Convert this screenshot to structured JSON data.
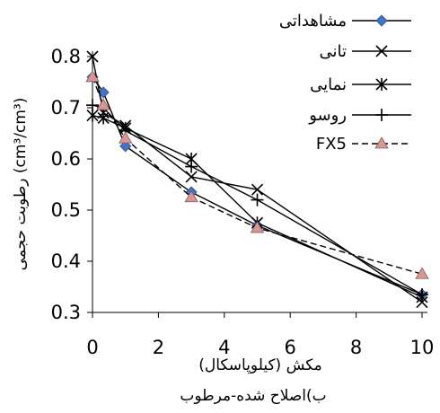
{
  "chart_data": {
    "type": "line",
    "xlabel": "مکش (کیلوپاسکال)",
    "ylabel": "رطوبت حجمی (cm³/cm³)",
    "caption": "ب)اصلاح شده-مرطوب",
    "xlim": [
      0,
      10
    ],
    "ylim": [
      0.3,
      0.8
    ],
    "x_ticks": [
      "0",
      "2",
      "4",
      "6",
      "8",
      "10"
    ],
    "y_ticks": [
      "0.3",
      "0.4",
      "0.5",
      "0.6",
      "0.7",
      "0.8"
    ],
    "legend_position": "top-right",
    "series": [
      {
        "name": "مشاهداتی",
        "marker": "diamond",
        "color": "#4472C4",
        "dash": false,
        "x": [
          0,
          0.33,
          1,
          3,
          5,
          10
        ],
        "y": [
          0.76,
          0.73,
          0.625,
          0.535,
          0.47,
          0.335
        ]
      },
      {
        "name": "تانی",
        "marker": "x",
        "color": "#000000",
        "dash": false,
        "x": [
          0,
          0.33,
          1,
          3,
          5,
          10
        ],
        "y": [
          0.8,
          0.69,
          0.665,
          0.565,
          0.54,
          0.32
        ]
      },
      {
        "name": "نمایی",
        "marker": "star",
        "color": "#000000",
        "dash": false,
        "x": [
          0,
          0.33,
          1,
          3,
          5,
          10
        ],
        "y": [
          0.685,
          0.68,
          0.66,
          0.6,
          0.475,
          0.33
        ]
      },
      {
        "name": "روسو",
        "marker": "plus",
        "color": "#000000",
        "dash": false,
        "x": [
          0,
          0.33,
          1,
          3,
          5,
          10
        ],
        "y": [
          0.705,
          0.7,
          0.655,
          0.585,
          0.52,
          0.335
        ]
      },
      {
        "name": "FX5",
        "marker": "triangle",
        "color": "#D99594",
        "dash": true,
        "x": [
          0,
          0.33,
          1,
          3,
          5,
          10
        ],
        "y": [
          0.76,
          0.705,
          0.64,
          0.525,
          0.465,
          0.375
        ]
      }
    ]
  }
}
